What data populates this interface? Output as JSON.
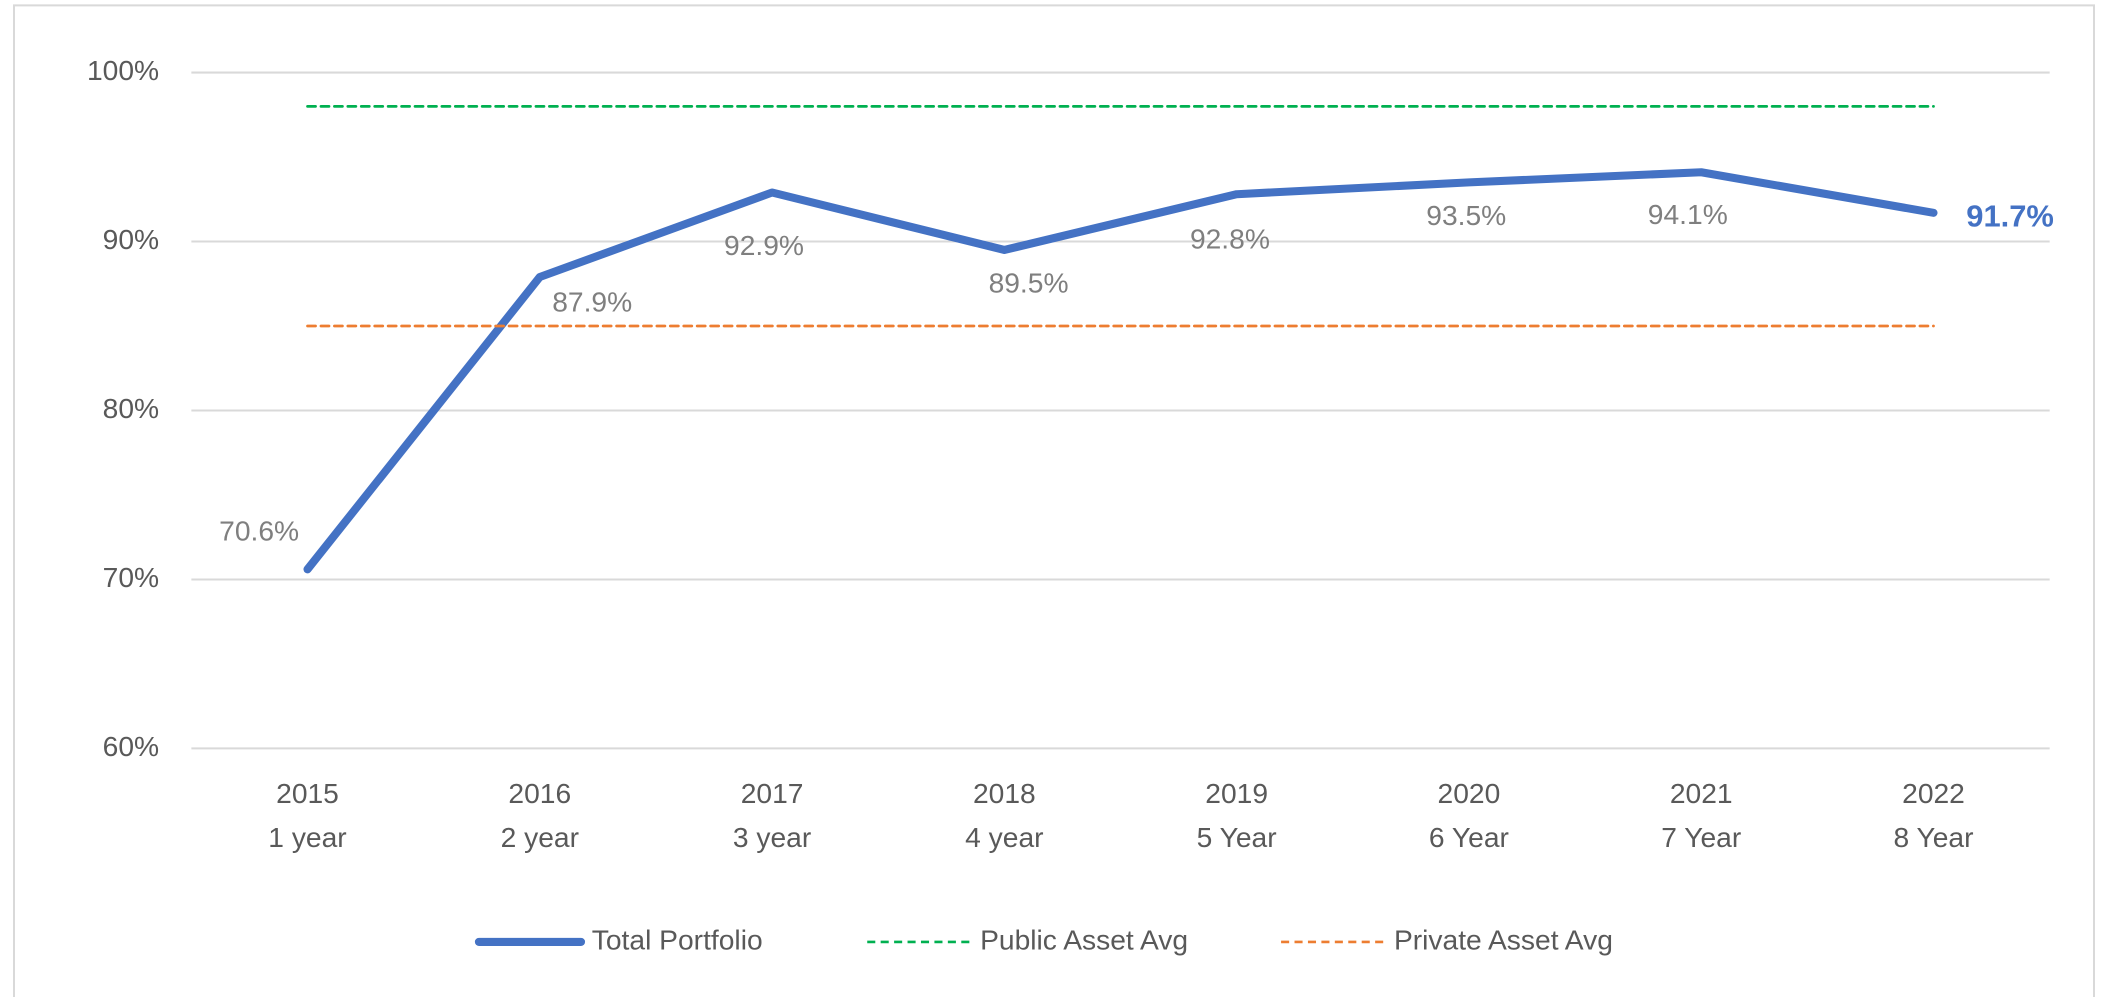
{
  "chart_data": {
    "type": "line",
    "categories": [
      [
        "2015",
        "1 year"
      ],
      [
        "2016",
        "2 year"
      ],
      [
        "2017",
        "3 year"
      ],
      [
        "2018",
        "4 year"
      ],
      [
        "2019",
        "5 Year"
      ],
      [
        "2020",
        "6 Year"
      ],
      [
        "2021",
        "7 Year"
      ],
      [
        "2022",
        "8 Year"
      ]
    ],
    "series": [
      {
        "name": "Total Portfolio",
        "color": "#4472c4",
        "style": "solid",
        "values": [
          70.6,
          87.9,
          92.9,
          89.5,
          92.8,
          93.5,
          94.1,
          91.7
        ],
        "value_labels": [
          "70.6%",
          "87.9%",
          "92.9%",
          "89.5%",
          "92.8%",
          "93.5%",
          "94.1%",
          "91.7%"
        ]
      },
      {
        "name": "Public Asset Avg",
        "color": "#00b050",
        "style": "dashed",
        "values": [
          98,
          98,
          98,
          98,
          98,
          98,
          98,
          98
        ]
      },
      {
        "name": "Private Asset Avg",
        "color": "#ed7d31",
        "style": "dashed",
        "values": [
          85,
          85,
          85,
          85,
          85,
          85,
          85,
          85
        ]
      }
    ],
    "ylim": [
      60,
      100
    ],
    "yticks": [
      {
        "value": 60,
        "label": "60%"
      },
      {
        "value": 70,
        "label": "70%"
      },
      {
        "value": 80,
        "label": "80%"
      },
      {
        "value": 90,
        "label": "90%"
      },
      {
        "value": 100,
        "label": "100%"
      }
    ],
    "grid": true,
    "legend": "bottom"
  }
}
